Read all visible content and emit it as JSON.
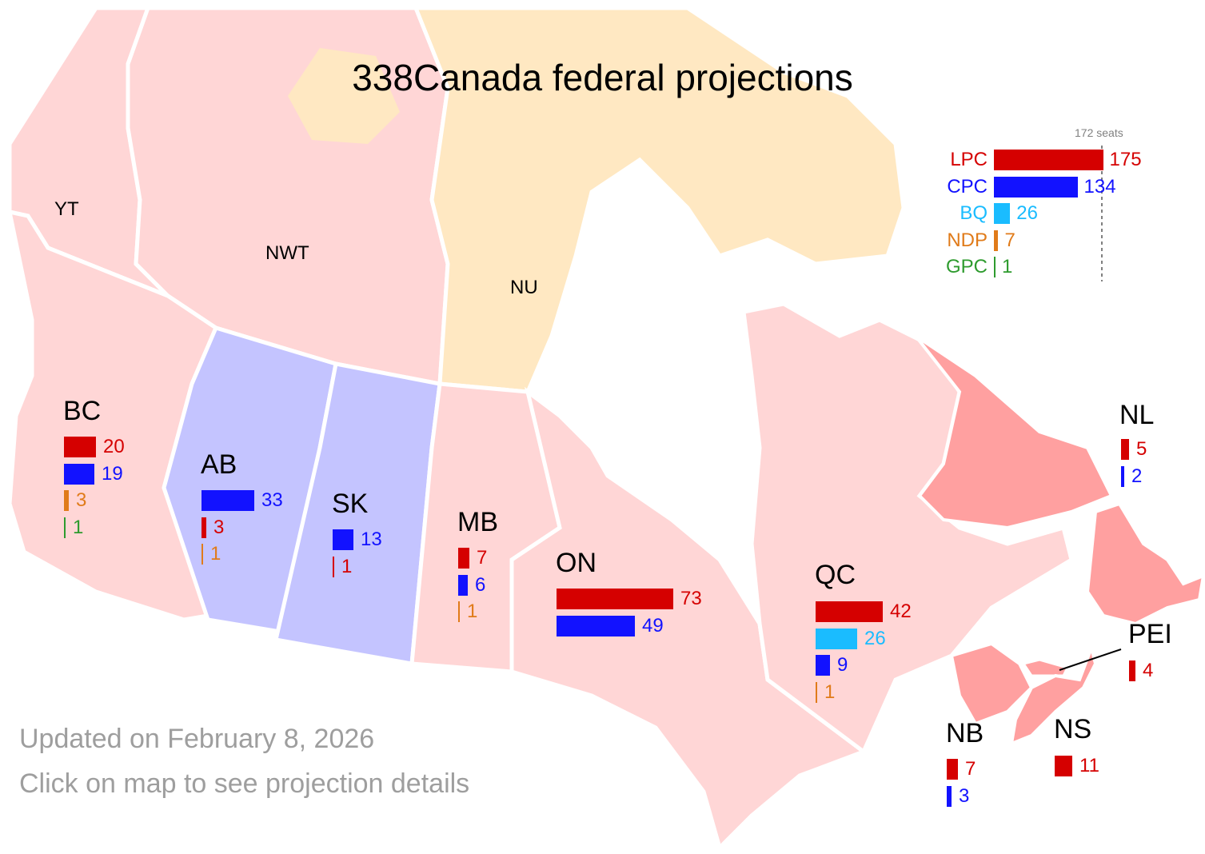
{
  "title": "338Canada federal projections",
  "footer": {
    "updated": "Updated on February 8, 2026",
    "hint": "Click on map to see projection details"
  },
  "colors": {
    "LPC": "#d50000",
    "CPC": "#1212ff",
    "BQ": "#1abcff",
    "NDP": "#e07b1a",
    "GPC": "#2e9b2e",
    "lpc_region_light": "#ffd6d6",
    "lpc_region_strong": "#ffa0a0",
    "cpc_region": "#c4c4ff",
    "territory_nu": "#ffe8c2"
  },
  "summary": {
    "threshold_label": "172 seats",
    "threshold": 172,
    "parties": [
      {
        "party": "LPC",
        "seats": 175
      },
      {
        "party": "CPC",
        "seats": 134
      },
      {
        "party": "BQ",
        "seats": 26
      },
      {
        "party": "NDP",
        "seats": 7
      },
      {
        "party": "GPC",
        "seats": 1
      }
    ]
  },
  "territories": [
    {
      "name": "YT"
    },
    {
      "name": "NWT"
    },
    {
      "name": "NU"
    }
  ],
  "provinces": [
    {
      "name": "BC",
      "rows": [
        {
          "party": "LPC",
          "seats": 20
        },
        {
          "party": "CPC",
          "seats": 19
        },
        {
          "party": "NDP",
          "seats": 3
        },
        {
          "party": "GPC",
          "seats": 1
        }
      ]
    },
    {
      "name": "AB",
      "rows": [
        {
          "party": "CPC",
          "seats": 33
        },
        {
          "party": "LPC",
          "seats": 3
        },
        {
          "party": "NDP",
          "seats": 1
        }
      ]
    },
    {
      "name": "SK",
      "rows": [
        {
          "party": "CPC",
          "seats": 13
        },
        {
          "party": "LPC",
          "seats": 1
        }
      ]
    },
    {
      "name": "MB",
      "rows": [
        {
          "party": "LPC",
          "seats": 7
        },
        {
          "party": "CPC",
          "seats": 6
        },
        {
          "party": "NDP",
          "seats": 1
        }
      ]
    },
    {
      "name": "ON",
      "rows": [
        {
          "party": "LPC",
          "seats": 73
        },
        {
          "party": "CPC",
          "seats": 49
        }
      ]
    },
    {
      "name": "QC",
      "rows": [
        {
          "party": "LPC",
          "seats": 42
        },
        {
          "party": "BQ",
          "seats": 26
        },
        {
          "party": "CPC",
          "seats": 9
        },
        {
          "party": "NDP",
          "seats": 1
        }
      ]
    },
    {
      "name": "NL",
      "rows": [
        {
          "party": "LPC",
          "seats": 5
        },
        {
          "party": "CPC",
          "seats": 2
        }
      ]
    },
    {
      "name": "PEI",
      "rows": [
        {
          "party": "LPC",
          "seats": 4
        }
      ]
    },
    {
      "name": "NB",
      "rows": [
        {
          "party": "LPC",
          "seats": 7
        },
        {
          "party": "CPC",
          "seats": 3
        }
      ]
    },
    {
      "name": "NS",
      "rows": [
        {
          "party": "LPC",
          "seats": 11
        }
      ]
    }
  ]
}
